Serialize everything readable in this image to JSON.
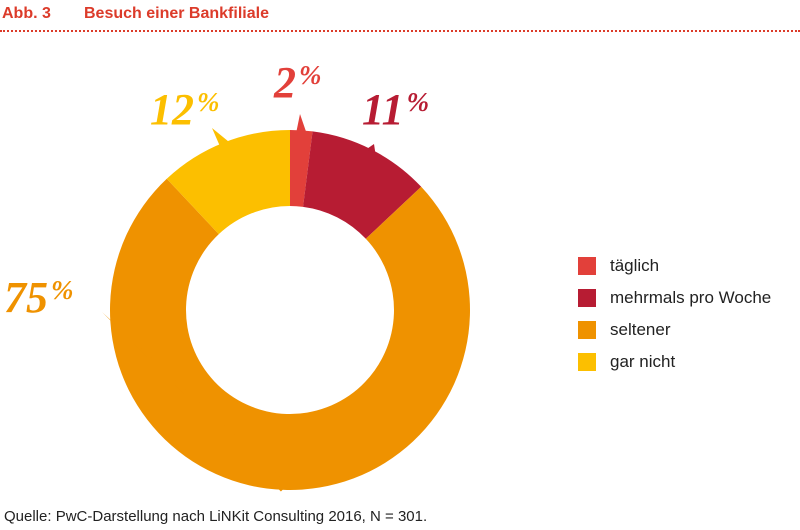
{
  "figure": {
    "number": "Abb. 3",
    "title": "Besuch einer Bankfiliale"
  },
  "source": "Quelle: PwC-Darstellung nach LiNKit Consulting 2016, N = 301.",
  "chart_data": {
    "type": "pie",
    "style": "donut",
    "title": "Besuch einer Bankfiliale",
    "categories": [
      "täglich",
      "mehrmals pro Woche",
      "seltener",
      "gar nicht"
    ],
    "values": [
      2,
      11,
      75,
      12
    ],
    "labels": [
      "2 %",
      "11 %",
      "75 %",
      "12 %"
    ],
    "colors": [
      "#e2403a",
      "#b71c33",
      "#ef9200",
      "#fcbf00"
    ],
    "unit": "%",
    "legend_position": "right"
  }
}
